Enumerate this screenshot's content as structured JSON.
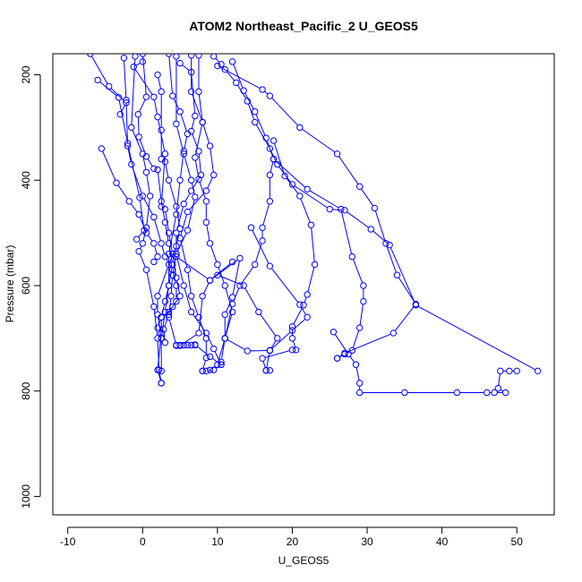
{
  "chart_data": {
    "type": "scatter",
    "title": "ATOM2 Northeast_Pacific_2 U_GEOS5",
    "xlabel": "U_GEOS5",
    "ylabel": "Pressure (mbar)",
    "xlim": [
      -12,
      55
    ],
    "ylim": [
      1035,
      160
    ],
    "y_reversed": true,
    "x_ticks": [
      -10,
      0,
      10,
      20,
      30,
      40,
      50
    ],
    "y_ticks": [
      200,
      400,
      600,
      800,
      1000
    ],
    "grid": false,
    "legend": "none",
    "color": "#0000ff",
    "series": [
      {
        "points": [
          [
            -7,
            160
          ],
          [
            -4.5,
            222
          ],
          [
            -2.2,
            253
          ],
          [
            -3,
            275
          ]
        ]
      },
      {
        "points": [
          [
            -6,
            210
          ],
          [
            -3.2,
            243
          ],
          [
            -2,
            330
          ],
          [
            -0.4,
            433
          ],
          [
            0.2,
            495
          ],
          [
            -0.8,
            512
          ]
        ]
      },
      {
        "points": [
          [
            -5.5,
            340
          ],
          [
            -3.5,
            405
          ],
          [
            -1.8,
            440
          ],
          [
            -0.5,
            465
          ],
          [
            0.5,
            500
          ],
          [
            1.5,
            520
          ],
          [
            2,
            545
          ],
          [
            1.5,
            555
          ]
        ]
      },
      {
        "points": [
          [
            -2.5,
            168
          ],
          [
            -2.2,
            248
          ],
          [
            -2,
            335
          ],
          [
            -1.5,
            370
          ],
          [
            0,
            430
          ],
          [
            1.5,
            470
          ],
          [
            2.5,
            520
          ],
          [
            3,
            545
          ],
          [
            4,
            570
          ],
          [
            4.5,
            600
          ],
          [
            4.5,
            630
          ],
          [
            3.5,
            650
          ],
          [
            2.5,
            660
          ],
          [
            2,
            680
          ]
        ]
      },
      {
        "points": [
          [
            -1,
            165
          ],
          [
            -1.5,
            300
          ],
          [
            0,
            350
          ],
          [
            0.5,
            385
          ],
          [
            1,
            430
          ],
          [
            0.5,
            490
          ],
          [
            0,
            520
          ],
          [
            -0.5,
            535
          ],
          [
            0.5,
            570
          ],
          [
            1.5,
            640
          ],
          [
            2,
            700
          ],
          [
            2.2,
            760
          ],
          [
            2.5,
            785
          ]
        ]
      },
      {
        "points": [
          [
            0,
            160
          ],
          [
            0.5,
            242
          ],
          [
            -0.6,
            275
          ],
          [
            -0.5,
            318
          ],
          [
            0.5,
            355
          ],
          [
            1.5,
            378
          ],
          [
            2,
            380
          ],
          [
            2.5,
            440
          ],
          [
            3,
            480
          ],
          [
            3.5,
            520
          ],
          [
            4,
            560
          ],
          [
            3.5,
            600
          ],
          [
            3,
            630
          ],
          [
            2.5,
            660
          ],
          [
            2.5,
            690
          ],
          [
            2,
            760
          ],
          [
            2.5,
            785
          ]
        ]
      },
      {
        "points": [
          [
            0,
            175
          ],
          [
            -1.2,
            185
          ],
          [
            1.5,
            242
          ],
          [
            2,
            280
          ],
          [
            3,
            350
          ],
          [
            2.5,
            450
          ],
          [
            3,
            455
          ],
          [
            3.5,
            500
          ],
          [
            4,
            540
          ],
          [
            4.5,
            585
          ],
          [
            5,
            620
          ],
          [
            4,
            640
          ],
          [
            3.5,
            655
          ],
          [
            2.8,
            683
          ],
          [
            3,
            708
          ]
        ]
      },
      {
        "points": [
          [
            2,
            200
          ],
          [
            2.5,
            232
          ],
          [
            2.5,
            305
          ],
          [
            2.5,
            360
          ],
          [
            3,
            365
          ],
          [
            3.5,
            400
          ],
          [
            4.5,
            450
          ],
          [
            5,
            492
          ],
          [
            4.5,
            525
          ],
          [
            3.5,
            560
          ],
          [
            2,
            620
          ],
          [
            2,
            655
          ],
          [
            2.5,
            700
          ]
        ]
      },
      {
        "points": [
          [
            3.5,
            160
          ],
          [
            4,
            240
          ],
          [
            5,
            270
          ],
          [
            6,
            312
          ],
          [
            5.5,
            345
          ],
          [
            5,
            400
          ],
          [
            4.5,
            465
          ],
          [
            3.5,
            540
          ],
          [
            3.5,
            600
          ],
          [
            3,
            650
          ],
          [
            2.5,
            700
          ],
          [
            2.5,
            762
          ]
        ]
      },
      {
        "points": [
          [
            4.5,
            165
          ],
          [
            4.5,
            293
          ],
          [
            5.5,
            350
          ],
          [
            6.5,
            400
          ],
          [
            7,
            432
          ],
          [
            6,
            495
          ],
          [
            4.5,
            540
          ],
          [
            4,
            580
          ],
          [
            3.8,
            620
          ],
          [
            3.5,
            660
          ],
          [
            4.5,
            713
          ],
          [
            5,
            713
          ],
          [
            5.5,
            713
          ],
          [
            6,
            713
          ],
          [
            6.5,
            713
          ],
          [
            7,
            713
          ]
        ]
      },
      {
        "points": [
          [
            5,
            178
          ],
          [
            6.5,
            195
          ],
          [
            7,
            278
          ],
          [
            6.5,
            307
          ],
          [
            7.5,
            345
          ],
          [
            7.8,
            390
          ],
          [
            6.5,
            420
          ],
          [
            5.5,
            445
          ],
          [
            4.5,
            500
          ],
          [
            4.5,
            540
          ],
          [
            5.5,
            600
          ],
          [
            6.5,
            650
          ],
          [
            8.5,
            690
          ],
          [
            9.5,
            720
          ],
          [
            10.5,
            750
          ]
        ]
      },
      {
        "points": [
          [
            6.5,
            163
          ],
          [
            6.5,
            232
          ],
          [
            8,
            290
          ],
          [
            7,
            357
          ],
          [
            7.5,
            398
          ],
          [
            8.5,
            440
          ],
          [
            8.5,
            480
          ],
          [
            9,
            520
          ],
          [
            10,
            560
          ],
          [
            11,
            600
          ],
          [
            12,
            650
          ],
          [
            11,
            700
          ],
          [
            10.5,
            745
          ]
        ]
      },
      {
        "points": [
          [
            7.5,
            163
          ],
          [
            7.5,
            232
          ],
          [
            8,
            290
          ],
          [
            9,
            335
          ],
          [
            9.5,
            390
          ],
          [
            8.5,
            420
          ],
          [
            6,
            460
          ],
          [
            5,
            510
          ],
          [
            6,
            570
          ],
          [
            6.5,
            620
          ],
          [
            7.5,
            660
          ],
          [
            8.5,
            700
          ],
          [
            8.5,
            737
          ],
          [
            8,
            762
          ]
        ]
      },
      {
        "points": [
          [
            9.5,
            165
          ],
          [
            10.5,
            180
          ],
          [
            11,
            190
          ],
          [
            12.5,
            215
          ],
          [
            14,
            250
          ],
          [
            15,
            290
          ],
          [
            17,
            340
          ],
          [
            18,
            370
          ],
          [
            20,
            408
          ],
          [
            25,
            455
          ],
          [
            27,
            457
          ],
          [
            30.5,
            493
          ],
          [
            33,
            523
          ],
          [
            36.5,
            637
          ],
          [
            52.8,
            762
          ]
        ]
      },
      {
        "points": [
          [
            10,
            183
          ],
          [
            16,
            228
          ],
          [
            17,
            240
          ],
          [
            21,
            300
          ],
          [
            26,
            350
          ],
          [
            29,
            412
          ],
          [
            31,
            453
          ],
          [
            32.5,
            520
          ],
          [
            34,
            580
          ],
          [
            36.5,
            635
          ],
          [
            33.5,
            690
          ],
          [
            27,
            728
          ],
          [
            26,
            738
          ]
        ]
      },
      {
        "points": [
          [
            12,
            175
          ],
          [
            13.5,
            230
          ],
          [
            15,
            270
          ],
          [
            16.5,
            320
          ],
          [
            17.5,
            360
          ],
          [
            22,
            417
          ],
          [
            26.5,
            455
          ],
          [
            28,
            545
          ],
          [
            29.5,
            600
          ],
          [
            29.5,
            630
          ],
          [
            29,
            680
          ],
          [
            28,
            723
          ],
          [
            27,
            730
          ],
          [
            26,
            738
          ]
        ]
      },
      {
        "points": [
          [
            4.5,
            545
          ],
          [
            9,
            590
          ],
          [
            13,
            548
          ],
          [
            12,
            622
          ],
          [
            11,
            655
          ],
          [
            11,
            700
          ],
          [
            14,
            724
          ],
          [
            17,
            723
          ]
        ]
      },
      {
        "points": [
          [
            12,
            555
          ],
          [
            9,
            590
          ],
          [
            8,
            620
          ],
          [
            7.5,
            690
          ],
          [
            5,
            714
          ],
          [
            4.5,
            714
          ]
        ]
      },
      {
        "points": [
          [
            7,
            712
          ],
          [
            9,
            735
          ],
          [
            10.5,
            750
          ],
          [
            9.5,
            760
          ],
          [
            8.5,
            762
          ],
          [
            8,
            762
          ]
        ]
      },
      {
        "points": [
          [
            17.5,
            325
          ],
          [
            19,
            392
          ],
          [
            21,
            430
          ],
          [
            22.5,
            485
          ],
          [
            23,
            560
          ],
          [
            22,
            617
          ],
          [
            21.5,
            637
          ],
          [
            20,
            678
          ],
          [
            20,
            700
          ],
          [
            20.5,
            722
          ],
          [
            20,
            722
          ],
          [
            16,
            738
          ],
          [
            16.5,
            761
          ],
          [
            17,
            761
          ]
        ]
      },
      {
        "points": [
          [
            17.5,
            360
          ],
          [
            17,
            390
          ],
          [
            17,
            440
          ],
          [
            16,
            490
          ],
          [
            16,
            515
          ],
          [
            15,
            560
          ],
          [
            13,
            600
          ],
          [
            12,
            635
          ],
          [
            11,
            700
          ],
          [
            10,
            750
          ],
          [
            9,
            760
          ]
        ]
      },
      {
        "points": [
          [
            10,
            580
          ],
          [
            13.5,
            600
          ],
          [
            15.5,
            650
          ],
          [
            18,
            700
          ],
          [
            17,
            723
          ]
        ]
      },
      {
        "points": [
          [
            14.5,
            490
          ],
          [
            17,
            563
          ],
          [
            21,
            636
          ],
          [
            22,
            660
          ],
          [
            20,
            685
          ],
          [
            17,
            723
          ],
          [
            16.5,
            761
          ]
        ]
      },
      {
        "points": [
          [
            25.5,
            688
          ],
          [
            27.5,
            730
          ],
          [
            28.5,
            750
          ],
          [
            29,
            785
          ],
          [
            29,
            803
          ],
          [
            35,
            803
          ],
          [
            42,
            803
          ],
          [
            46,
            803
          ],
          [
            47,
            803
          ],
          [
            48.5,
            803
          ],
          [
            47.5,
            795
          ],
          [
            47.8,
            762
          ],
          [
            49,
            762
          ],
          [
            50,
            762
          ]
        ]
      }
    ]
  }
}
